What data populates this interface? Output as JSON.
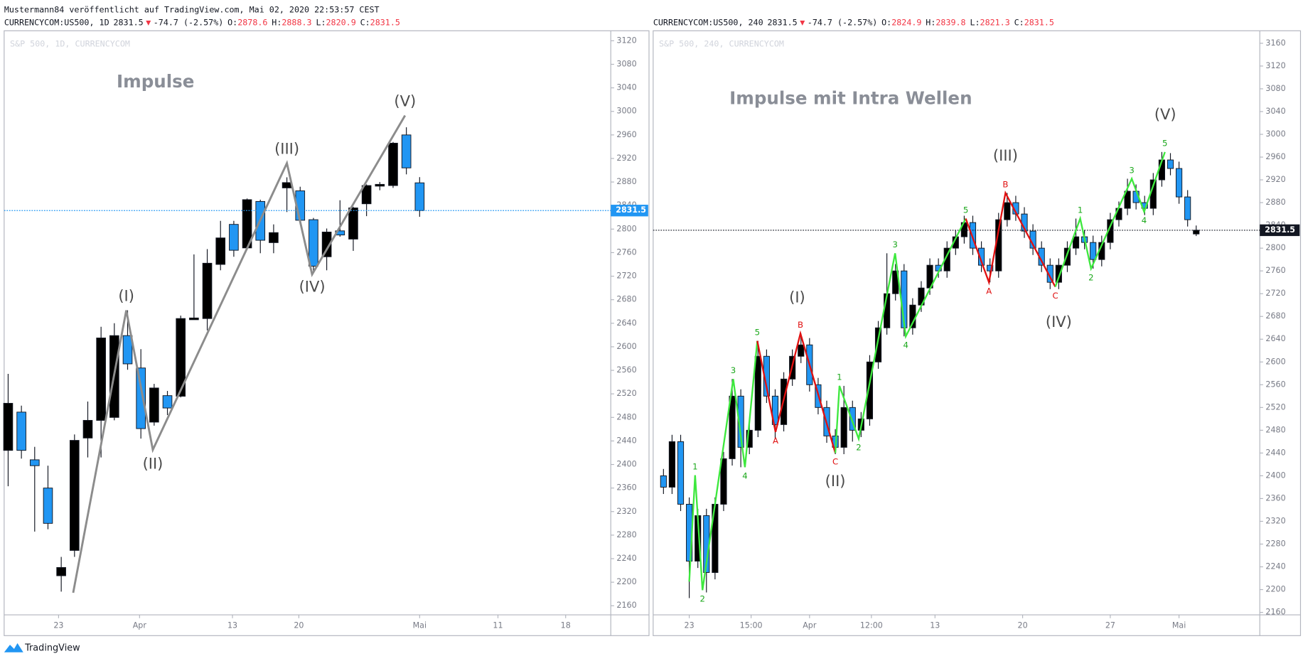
{
  "publisher": "Mustermann84 veröffentlicht auf TradingView.com, Mai 02, 2020 22:53:57 CEST",
  "brand": "TradingView",
  "chart_data": [
    {
      "type": "candlestick",
      "watermark": "S&P 500, 1D, CURRENCYCOM",
      "header": {
        "symbol": "CURRENCYCOM:US500, 1D",
        "last": "2831.5",
        "arrow": "▼",
        "change": "-74.7 (-2.57%)",
        "ohlc": [
          {
            "label": "O:",
            "value": "2878.6"
          },
          {
            "label": "H:",
            "value": "2888.3"
          },
          {
            "label": "L:",
            "value": "2820.9"
          },
          {
            "label": "C:",
            "value": "2831.5"
          }
        ]
      },
      "title": {
        "text": "Impulse",
        "x": 11.1,
        "y": 3049
      },
      "colors": {
        "up": "#000000",
        "down": "#2196f3"
      },
      "xlim": [
        -0.3,
        45.4
      ],
      "ylim": [
        2144.5,
        3137
      ],
      "xticks": [
        {
          "value": 3.8,
          "label": "23"
        },
        {
          "value": 9.9,
          "label": "Apr"
        },
        {
          "value": 16.9,
          "label": "13"
        },
        {
          "value": 21.9,
          "label": "20"
        },
        {
          "value": 31,
          "label": "Mai"
        },
        {
          "value": 36.9,
          "label": "11"
        },
        {
          "value": 42,
          "label": "18"
        }
      ],
      "yticks": [
        2160,
        2200,
        2240,
        2280,
        2320,
        2360,
        2400,
        2440,
        2480,
        2520,
        2560,
        2600,
        2640,
        2680,
        2720,
        2760,
        2800,
        2840,
        2880,
        2920,
        2960,
        3000,
        3040,
        3080,
        3120
      ],
      "price_line": {
        "value": 2831.5,
        "color": "#2196f3",
        "style": "dotted"
      },
      "x": [
        0,
        1,
        2,
        3,
        4,
        5,
        6,
        7,
        8,
        9,
        10,
        11,
        12,
        13,
        14,
        15,
        16,
        17,
        18,
        19,
        20,
        21,
        22,
        23,
        24,
        25,
        26,
        27,
        28,
        29,
        30,
        31
      ],
      "ohlc": [
        [
          2424,
          2554,
          2363,
          2504
        ],
        [
          2489,
          2500,
          2410,
          2424
        ],
        [
          2408,
          2430,
          2286,
          2398
        ],
        [
          2360,
          2398,
          2290,
          2300
        ],
        [
          2211,
          2243,
          2184,
          2225
        ],
        [
          2254,
          2451,
          2243,
          2441
        ],
        [
          2445,
          2507,
          2412,
          2475
        ],
        [
          2475,
          2634,
          2412,
          2615
        ],
        [
          2480,
          2640,
          2475,
          2619
        ],
        [
          2619,
          2662,
          2561,
          2571
        ],
        [
          2564,
          2596,
          2444,
          2461
        ],
        [
          2472,
          2537,
          2466,
          2530
        ],
        [
          2517,
          2525,
          2484,
          2496
        ],
        [
          2516,
          2653,
          2514,
          2648
        ],
        [
          2646,
          2757,
          2646,
          2649
        ],
        [
          2648,
          2766,
          2628,
          2742
        ],
        [
          2740,
          2814,
          2730,
          2785
        ],
        [
          2808,
          2814,
          2753,
          2764
        ],
        [
          2768,
          2852,
          2765,
          2850
        ],
        [
          2847,
          2850,
          2759,
          2781
        ],
        [
          2777,
          2808,
          2759,
          2794
        ],
        [
          2870,
          2888,
          2829,
          2879
        ],
        [
          2865,
          2872,
          2808,
          2815
        ],
        [
          2816,
          2819,
          2726,
          2737
        ],
        [
          2753,
          2801,
          2730,
          2795
        ],
        [
          2797,
          2849,
          2787,
          2790
        ],
        [
          2783,
          2838,
          2763,
          2836
        ],
        [
          2843,
          2876,
          2822,
          2874
        ],
        [
          2873,
          2880,
          2866,
          2876
        ],
        [
          2874,
          2948,
          2870,
          2946
        ],
        [
          2960,
          2973,
          2893,
          2904
        ],
        [
          2878.6,
          2888.3,
          2820.9,
          2831.5
        ]
      ],
      "waves": [
        {
          "color": "#8c8c8c",
          "x": [
            4.9,
            8.9,
            10.9,
            21,
            22.9,
            29.9
          ],
          "values": [
            2182,
            2662,
            2425,
            2912,
            2723,
            2993
          ]
        }
      ],
      "annotations": [
        {
          "text": "(I)",
          "x": 8.9,
          "y": 2685
        },
        {
          "text": "(II)",
          "x": 10.9,
          "y": 2400
        },
        {
          "text": "(III)",
          "x": 21,
          "y": 2935
        },
        {
          "text": "(IV)",
          "x": 22.9,
          "y": 2701
        },
        {
          "text": "(V)",
          "x": 29.9,
          "y": 3016
        }
      ]
    },
    {
      "type": "candlestick",
      "watermark": "S&P 500, 240, CURRENCYCOM",
      "header": {
        "symbol": "CURRENCYCOM:US500, 240",
        "last": "2831.5",
        "arrow": "▼",
        "change": "-74.7 (-2.57%)",
        "ohlc": [
          {
            "label": "O:",
            "value": "2824.9"
          },
          {
            "label": "H:",
            "value": "2839.8"
          },
          {
            "label": "L:",
            "value": "2821.3"
          },
          {
            "label": "C:",
            "value": "2831.5"
          }
        ]
      },
      "title": {
        "text": "Impulse mit Intra Wellen",
        "x": 9.4,
        "y": 3062
      },
      "colors": {
        "up": "#000000",
        "down": "#2196f3"
      },
      "xlim": [
        -2.1,
        33.2
      ],
      "ylim": [
        2155.6,
        3182
      ],
      "xticks": [
        {
          "value": 0,
          "label": "23"
        },
        {
          "value": 3.6,
          "label": "15:00"
        },
        {
          "value": 7,
          "label": "Apr"
        },
        {
          "value": 10.6,
          "label": "12:00"
        },
        {
          "value": 14.3,
          "label": "13"
        },
        {
          "value": 19.4,
          "label": "20"
        },
        {
          "value": 24.5,
          "label": "27"
        },
        {
          "value": 28.5,
          "label": "Mai"
        }
      ],
      "yticks": [
        2160,
        2200,
        2240,
        2280,
        2320,
        2360,
        2400,
        2440,
        2480,
        2520,
        2560,
        2600,
        2640,
        2680,
        2720,
        2760,
        2800,
        2840,
        2880,
        2920,
        2960,
        3000,
        3040,
        3080,
        3120,
        3160
      ],
      "price_line": {
        "value": 2831.5,
        "color": "#131722",
        "style": "dotted"
      },
      "x": [
        -1.5,
        -1,
        -0.5,
        0,
        0.5,
        1,
        1.5,
        2,
        2.5,
        3,
        3.5,
        4,
        4.5,
        5,
        5.5,
        6,
        6.5,
        7,
        7.5,
        8,
        8.5,
        9,
        9.5,
        10,
        10.5,
        11,
        11.5,
        12,
        12.5,
        13,
        13.5,
        14,
        14.5,
        15,
        15.5,
        16,
        16.5,
        17,
        17.5,
        18,
        18.5,
        19,
        19.5,
        20,
        20.5,
        21,
        21.5,
        22,
        22.5,
        23,
        23.5,
        24,
        24.5,
        25,
        25.5,
        26,
        26.5,
        27,
        27.5,
        28,
        28.5,
        29,
        29.5
      ],
      "ohlc": [
        [
          2400,
          2412,
          2368,
          2380
        ],
        [
          2380,
          2472,
          2368,
          2460
        ],
        [
          2460,
          2472,
          2338,
          2350
        ],
        [
          2350,
          2362,
          2185,
          2250
        ],
        [
          2250,
          2342,
          2238,
          2330
        ],
        [
          2330,
          2342,
          2195,
          2230
        ],
        [
          2230,
          2362,
          2218,
          2350
        ],
        [
          2350,
          2442,
          2338,
          2430
        ],
        [
          2430,
          2570,
          2418,
          2540
        ],
        [
          2540,
          2552,
          2415,
          2450
        ],
        [
          2450,
          2492,
          2438,
          2480
        ],
        [
          2480,
          2637,
          2468,
          2610
        ],
        [
          2610,
          2622,
          2528,
          2540
        ],
        [
          2540,
          2552,
          2465,
          2490
        ],
        [
          2490,
          2582,
          2478,
          2570
        ],
        [
          2570,
          2622,
          2558,
          2610
        ],
        [
          2610,
          2650,
          2598,
          2630
        ],
        [
          2630,
          2642,
          2548,
          2560
        ],
        [
          2560,
          2572,
          2508,
          2520
        ],
        [
          2520,
          2532,
          2458,
          2470
        ],
        [
          2470,
          2482,
          2438,
          2450
        ],
        [
          2450,
          2558,
          2438,
          2520
        ],
        [
          2520,
          2532,
          2460,
          2480
        ],
        [
          2480,
          2512,
          2468,
          2500
        ],
        [
          2500,
          2612,
          2488,
          2600
        ],
        [
          2600,
          2672,
          2588,
          2660
        ],
        [
          2660,
          2791,
          2648,
          2720
        ],
        [
          2720,
          2772,
          2708,
          2760
        ],
        [
          2760,
          2772,
          2645,
          2660
        ],
        [
          2660,
          2712,
          2648,
          2700
        ],
        [
          2700,
          2742,
          2688,
          2730
        ],
        [
          2730,
          2782,
          2718,
          2770
        ],
        [
          2770,
          2782,
          2748,
          2760
        ],
        [
          2760,
          2812,
          2748,
          2800
        ],
        [
          2800,
          2832,
          2788,
          2820
        ],
        [
          2820,
          2857,
          2808,
          2845
        ],
        [
          2845,
          2857,
          2788,
          2800
        ],
        [
          2800,
          2812,
          2758,
          2770
        ],
        [
          2770,
          2782,
          2740,
          2760
        ],
        [
          2760,
          2862,
          2748,
          2850
        ],
        [
          2850,
          2897,
          2838,
          2880
        ],
        [
          2880,
          2892,
          2848,
          2860
        ],
        [
          2860,
          2872,
          2818,
          2830
        ],
        [
          2830,
          2842,
          2788,
          2800
        ],
        [
          2800,
          2812,
          2758,
          2770
        ],
        [
          2770,
          2782,
          2728,
          2740
        ],
        [
          2740,
          2782,
          2728,
          2770
        ],
        [
          2770,
          2812,
          2758,
          2800
        ],
        [
          2800,
          2852,
          2788,
          2820
        ],
        [
          2820,
          2832,
          2798,
          2810
        ],
        [
          2810,
          2822,
          2764,
          2780
        ],
        [
          2780,
          2822,
          2768,
          2810
        ],
        [
          2810,
          2862,
          2798,
          2850
        ],
        [
          2850,
          2882,
          2838,
          2870
        ],
        [
          2870,
          2922,
          2858,
          2900
        ],
        [
          2900,
          2912,
          2868,
          2880
        ],
        [
          2880,
          2892,
          2858,
          2870
        ],
        [
          2870,
          2932,
          2858,
          2920
        ],
        [
          2920,
          2969,
          2908,
          2955
        ],
        [
          2955,
          2967,
          2928,
          2940
        ],
        [
          2940,
          2952,
          2878,
          2890
        ],
        [
          2890,
          2902,
          2838,
          2850
        ],
        [
          2824.9,
          2839.8,
          2821.3,
          2831.5
        ]
      ],
      "waves": [
        {
          "color": "#3ee83e",
          "x": [
            0,
            0.34,
            0.77,
            2.56,
            3.24,
            3.96
          ],
          "values": [
            2214,
            2401,
            2199,
            2570,
            2415,
            2637
          ],
          "labels": [
            null,
            "1",
            "2",
            "3",
            "4",
            "5"
          ]
        },
        {
          "color": "#e01010",
          "x": [
            3.96,
            5.02,
            6.47,
            8.5
          ],
          "values": [
            2637,
            2477,
            2650,
            2440
          ],
          "labels": [
            null,
            "A",
            "B",
            "C"
          ]
        },
        {
          "color": "#3ee83e",
          "x": [
            8.5,
            8.74,
            9.86,
            11.98,
            12.6,
            16.09
          ],
          "values": [
            2440,
            2558,
            2465,
            2791,
            2645,
            2852
          ],
          "labels": [
            null,
            "1",
            "2",
            "3",
            "4",
            "5"
          ]
        },
        {
          "color": "#e01010",
          "x": [
            16.09,
            17.44,
            18.4,
            21.3
          ],
          "values": [
            2852,
            2740,
            2897,
            2732
          ],
          "labels": [
            null,
            "A",
            "B",
            "C"
          ]
        },
        {
          "color": "#3ee83e",
          "x": [
            21.3,
            22.75,
            23.38,
            25.75,
            26.47,
            27.68
          ],
          "values": [
            2732,
            2852,
            2764,
            2922,
            2864,
            2969
          ],
          "labels": [
            null,
            "1",
            "2",
            "3",
            "4",
            "5"
          ]
        }
      ],
      "annotations": [
        {
          "text": "(I)",
          "x": 6.28,
          "y": 2712
        },
        {
          "text": "(II)",
          "x": 8.5,
          "y": 2389
        },
        {
          "text": "(III)",
          "x": 18.4,
          "y": 2961
        },
        {
          "text": "(IV)",
          "x": 21.5,
          "y": 2669
        },
        {
          "text": "(V)",
          "x": 27.7,
          "y": 3034
        }
      ]
    }
  ]
}
